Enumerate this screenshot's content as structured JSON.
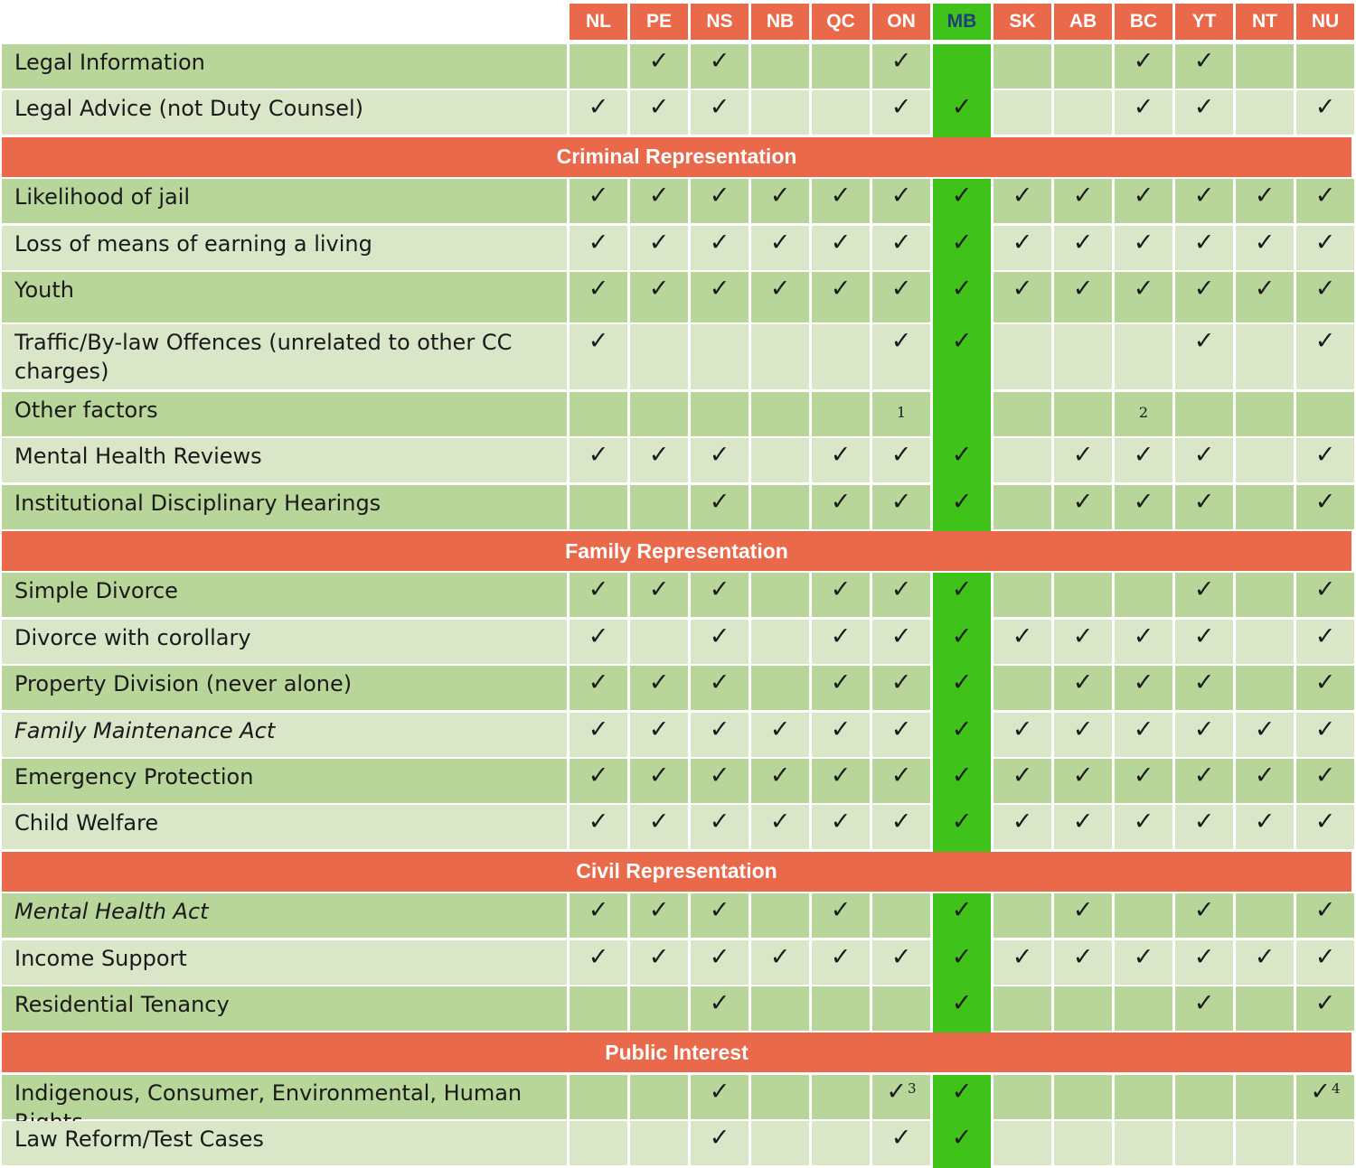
{
  "columns": [
    "NL",
    "PE",
    "NS",
    "NB",
    "QC",
    "ON",
    "MB",
    "SK",
    "AB",
    "BC",
    "YT",
    "NT",
    "NU"
  ],
  "highlight_column": "MB",
  "check_glyph": "✓",
  "colors": {
    "header_orange": "#e9694a",
    "highlight_green": "#3fc21a",
    "row_dark": "#b8d59a",
    "row_light": "#dae6c8",
    "highlight_header_text": "#1f3f7a"
  },
  "rows": [
    {
      "type": "item",
      "label": "Legal Information",
      "cells": [
        "",
        "✓",
        "✓",
        "",
        "",
        "✓",
        "",
        "",
        "",
        "✓",
        "✓",
        "",
        ""
      ]
    },
    {
      "type": "item",
      "label": "Legal Advice (not Duty Counsel)",
      "cells": [
        "✓",
        "✓",
        "✓",
        "",
        "",
        "✓",
        "✓",
        "",
        "",
        "✓",
        "✓",
        "",
        "✓"
      ]
    },
    {
      "type": "section",
      "label": "Criminal Representation"
    },
    {
      "type": "item",
      "label": "Likelihood of jail",
      "cells": [
        "✓",
        "✓",
        "✓",
        "✓",
        "✓",
        "✓",
        "✓",
        "✓",
        "✓",
        "✓",
        "✓",
        "✓",
        "✓"
      ]
    },
    {
      "type": "item",
      "label": "Loss of means of earning a living",
      "cells": [
        "✓",
        "✓",
        "✓",
        "✓",
        "✓",
        "✓",
        "✓",
        "✓",
        "✓",
        "✓",
        "✓",
        "✓",
        "✓"
      ]
    },
    {
      "type": "item",
      "label": "Youth",
      "cells": [
        "✓",
        "✓",
        "✓",
        "✓",
        "✓",
        "✓",
        "✓",
        "✓",
        "✓",
        "✓",
        "✓",
        "✓",
        "✓"
      ]
    },
    {
      "type": "item",
      "label": "Traffic/By-law Offences  (unrelated to other CC charges)",
      "cells": [
        "✓",
        "",
        "",
        "",
        "",
        "✓",
        "✓",
        "",
        "",
        "",
        "✓",
        "",
        "✓"
      ]
    },
    {
      "type": "item",
      "label": "Other factors",
      "cells": [
        "",
        "",
        "",
        "",
        "",
        "1",
        "",
        "",
        "",
        "2",
        "",
        "",
        ""
      ]
    },
    {
      "type": "item",
      "label": "Mental Health Reviews",
      "cells": [
        "✓",
        "✓",
        "✓",
        "",
        "✓",
        "✓",
        "✓",
        "",
        "✓",
        "✓",
        "✓",
        "",
        "✓"
      ]
    },
    {
      "type": "item",
      "label": "Institutional Disciplinary Hearings",
      "cells": [
        "",
        "",
        "✓",
        "",
        "✓",
        "✓",
        "✓",
        "",
        "✓",
        "✓",
        "✓",
        "",
        "✓"
      ]
    },
    {
      "type": "section",
      "label": "Family Representation"
    },
    {
      "type": "item",
      "label": "Simple Divorce",
      "cells": [
        "✓",
        "✓",
        "✓",
        "",
        "✓",
        "✓",
        "✓",
        "",
        "",
        "",
        "✓",
        "",
        "✓"
      ]
    },
    {
      "type": "item",
      "label": "Divorce with corollary",
      "cells": [
        "✓",
        "",
        "✓",
        "",
        "✓",
        "✓",
        "✓",
        "✓",
        "✓",
        "✓",
        "✓",
        "",
        "✓"
      ]
    },
    {
      "type": "item",
      "label": "Property Division (never alone)",
      "cells": [
        "✓",
        "✓",
        "✓",
        "",
        "✓",
        "✓",
        "✓",
        "",
        "✓",
        "✓",
        "✓",
        "",
        "✓"
      ]
    },
    {
      "type": "item",
      "label": "Family Maintenance Act",
      "italic": true,
      "cells": [
        "✓",
        "✓",
        "✓",
        "✓",
        "✓",
        "✓",
        "✓",
        "✓",
        "✓",
        "✓",
        "✓",
        "✓",
        "✓"
      ]
    },
    {
      "type": "item",
      "label": "Emergency Protection",
      "cells": [
        "✓",
        "✓",
        "✓",
        "✓",
        "✓",
        "✓",
        "✓",
        "✓",
        "✓",
        "✓",
        "✓",
        "✓",
        "✓"
      ]
    },
    {
      "type": "item",
      "label": "Child Welfare",
      "cells": [
        "✓",
        "✓",
        "✓",
        "✓",
        "✓",
        "✓",
        "✓",
        "✓",
        "✓",
        "✓",
        "✓",
        "✓",
        "✓"
      ]
    },
    {
      "type": "section",
      "label": "Civil Representation"
    },
    {
      "type": "item",
      "label": "Mental Health Act",
      "italic": true,
      "cells": [
        "✓",
        "✓",
        "✓",
        "",
        "✓",
        "",
        "✓",
        "",
        "✓",
        "",
        "✓",
        "",
        "✓"
      ]
    },
    {
      "type": "item",
      "label": "Income Support",
      "cells": [
        "✓",
        "✓",
        "✓",
        "✓",
        "✓",
        "✓",
        "✓",
        "✓",
        "✓",
        "✓",
        "✓",
        "✓",
        "✓"
      ]
    },
    {
      "type": "item",
      "label": "Residential Tenancy",
      "cells": [
        "",
        "",
        "✓",
        "",
        "",
        "",
        "✓",
        "",
        "",
        "",
        "✓",
        "",
        "✓"
      ]
    },
    {
      "type": "section",
      "label": "Public Interest"
    },
    {
      "type": "item",
      "label": "Indigenous, Consumer, Environmental, Human Rights",
      "cells": [
        "",
        "",
        "✓",
        "",
        "",
        "✓3",
        "✓",
        "",
        "",
        "",
        "",
        "",
        "✓4"
      ]
    },
    {
      "type": "item",
      "label": "Law Reform/Test Cases",
      "cells": [
        "",
        "",
        "✓",
        "",
        "",
        "✓",
        "✓",
        "",
        "",
        "",
        "",
        "",
        ""
      ]
    }
  ]
}
